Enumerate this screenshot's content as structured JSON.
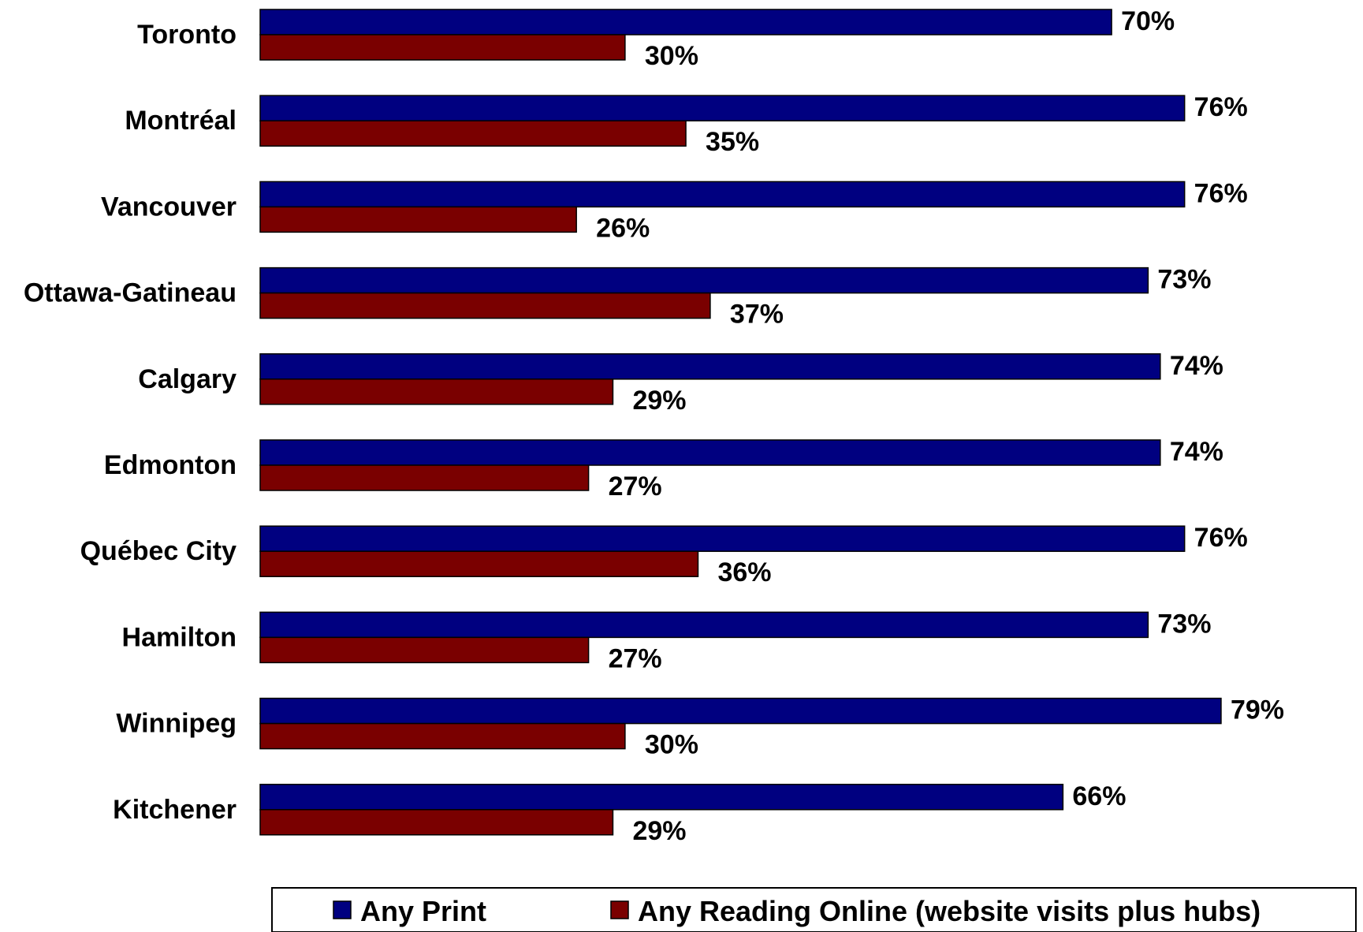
{
  "chart_data": {
    "type": "bar",
    "orientation": "horizontal",
    "categories": [
      "Toronto",
      "Montréal",
      "Vancouver",
      "Ottawa-Gatineau",
      "Calgary",
      "Edmonton",
      "Québec City",
      "Hamilton",
      "Winnipeg",
      "Kitchener"
    ],
    "series": [
      {
        "name": "Any Print",
        "color": "#000080",
        "values": [
          70,
          76,
          76,
          73,
          74,
          74,
          76,
          73,
          79,
          66
        ]
      },
      {
        "name": "Any Reading Online (website visits plus hubs)",
        "color": "#7a0000",
        "values": [
          30,
          35,
          26,
          37,
          29,
          27,
          36,
          27,
          30,
          29
        ]
      }
    ],
    "value_labels": {
      "Any Print": [
        "70%",
        "76%",
        "76%",
        "73%",
        "74%",
        "74%",
        "76%",
        "73%",
        "79%",
        "66%"
      ],
      "Any Reading Online (website visits plus hubs)": [
        "30%",
        "35%",
        "26%",
        "37%",
        "29%",
        "27%",
        "36%",
        "27%",
        "30%",
        "29%"
      ]
    },
    "title": "",
    "xlabel": "",
    "ylabel": "",
    "xlim": [
      0,
      80
    ],
    "grid": false,
    "legend": "bottom"
  }
}
